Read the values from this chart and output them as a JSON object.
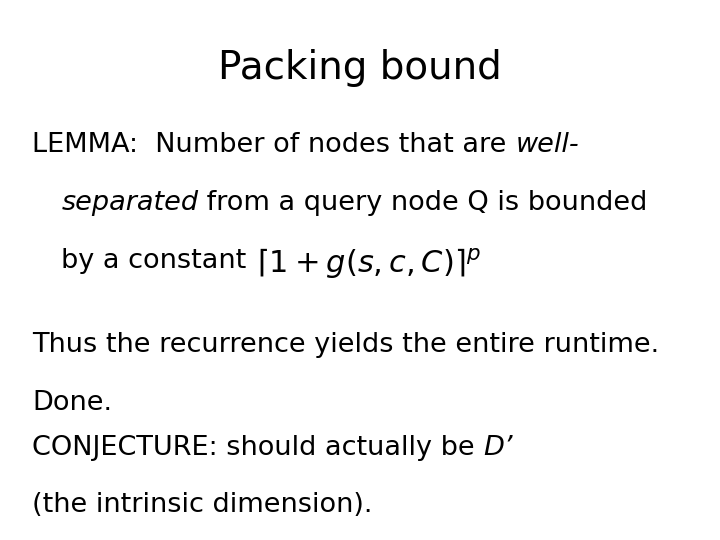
{
  "title": "Packing bound",
  "title_fontsize": 28,
  "background_color": "#ffffff",
  "text_color": "#000000",
  "body_fontsize": 19.5,
  "formula": "$\\lceil 1+g(s,c,C)\\rceil^{p}$",
  "formula_fontsize": 22,
  "thus_line1": "Thus the recurrence yields the entire runtime.",
  "thus_line2": "Done.",
  "conjecture_line2": "(the intrinsic dimension)."
}
